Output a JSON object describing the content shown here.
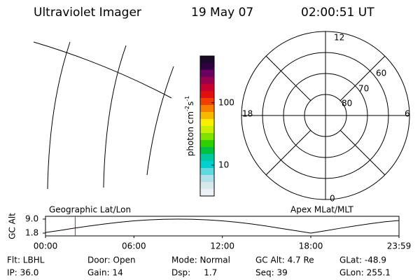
{
  "header": {
    "title": "Ultraviolet Imager",
    "date": "19 May 07",
    "time": "02:00:51 UT"
  },
  "polar": {
    "labels": [
      "12",
      "18",
      "6",
      "0"
    ],
    "rings": [
      "60",
      "70",
      "80"
    ]
  },
  "chart_data": [
    {
      "type": "line",
      "title": "Geographic Lat/Lon",
      "subtitle": "Apex MLat/MLT",
      "y_label": "GC Alt",
      "x": [
        0,
        1,
        2,
        3,
        4,
        5,
        6,
        7,
        8,
        9,
        10,
        11,
        12,
        13,
        14,
        15,
        16,
        17,
        18,
        19,
        20,
        21,
        22,
        23,
        23.98
      ],
      "values": [
        2.1,
        3.2,
        4.4,
        5.5,
        6.5,
        7.4,
        8.1,
        8.6,
        8.9,
        9.0,
        8.9,
        8.6,
        8.1,
        7.4,
        6.5,
        5.4,
        4.2,
        3.0,
        1.8,
        3.0,
        4.3,
        5.5,
        6.6,
        7.6,
        8.3
      ],
      "color": "#000000",
      "marker_x": 2.014,
      "marker_color": "#d02020",
      "xlim": [
        0,
        23.98
      ],
      "xticks": [
        {
          "value": 0,
          "label": "00:00"
        },
        {
          "value": 6,
          "label": "06:00"
        },
        {
          "value": 12,
          "label": "12:00"
        },
        {
          "value": 18,
          "label": "18:00"
        },
        {
          "value": 23.98,
          "label": "23:59"
        }
      ],
      "ylim": [
        1.8,
        9.0
      ],
      "yticks": [
        {
          "value": 9.0,
          "label": "9.0"
        },
        {
          "value": 1.8,
          "label": "1.8"
        }
      ]
    },
    {
      "type": "colorbar",
      "label_parts": [
        "photon cm",
        "-2",
        "s",
        "-1"
      ],
      "log": true,
      "ylim": [
        3.2,
        562
      ],
      "yticks": [
        10,
        100
      ],
      "colors": [
        "#1a0a2a",
        "#300040",
        "#6a0060",
        "#9a0050",
        "#c80030",
        "#e01010",
        "#f04000",
        "#f88000",
        "#f8b800",
        "#f8f000",
        "#c8f000",
        "#80e000",
        "#30d000",
        "#00c040",
        "#00c8a0",
        "#00d0d0",
        "#60d8e0",
        "#b0e0e8",
        "#d8e8ec",
        "#eef2f4"
      ]
    }
  ],
  "footer": {
    "rows": [
      [
        "Flt: LBHL",
        "Door: Open",
        "Mode: Normal",
        "GC Alt: 4.7 Re",
        "GLat: -48.9"
      ],
      [
        "IP: 36.0",
        "Gain: 14",
        "Dsp:     1.7",
        "Seq: 39",
        "GLon: 255.1"
      ]
    ]
  }
}
